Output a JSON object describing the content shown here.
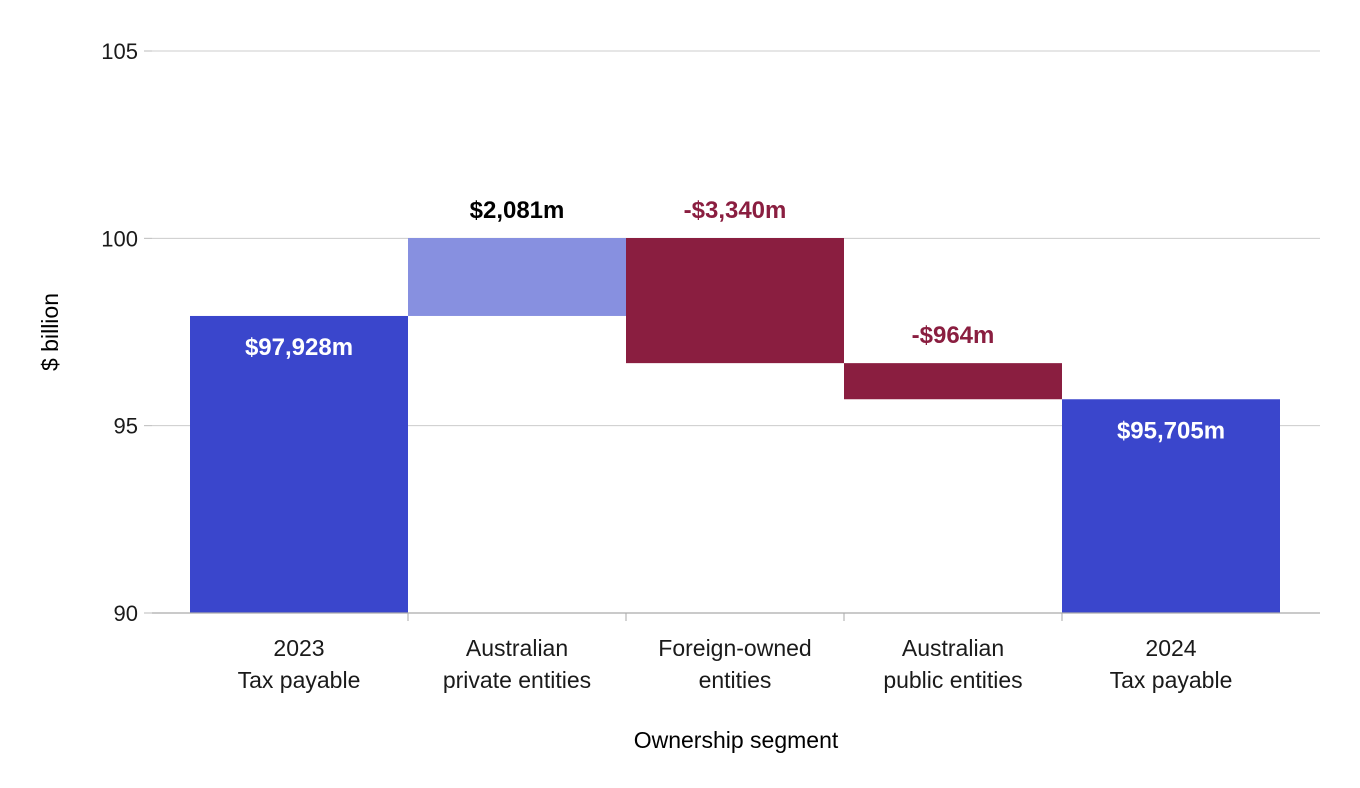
{
  "chart_data": {
    "type": "bar",
    "subtype": "waterfall",
    "title": "",
    "xlabel": "Ownership segment",
    "ylabel": "$ billion",
    "ylim": [
      90,
      105
    ],
    "yticks": [
      90,
      95,
      100,
      105
    ],
    "grid": true,
    "legend": "none",
    "categories": [
      [
        "2023",
        "Tax payable"
      ],
      [
        "Australian",
        "private entities"
      ],
      [
        "Foreign-owned",
        "entities"
      ],
      [
        "Australian",
        "public entities"
      ],
      [
        "2024",
        "Tax payable"
      ]
    ],
    "bars": [
      {
        "kind": "total",
        "start": 90,
        "end": 97.928,
        "value": 97928,
        "label": "$97,928m",
        "color": "#3a46cc",
        "label_color": "#ffffff",
        "label_position": "inside"
      },
      {
        "kind": "increase",
        "start": 97.928,
        "end": 100.009,
        "value": 2081,
        "label": "$2,081m",
        "color": "#8790e0",
        "label_color": "#000000",
        "label_position": "above"
      },
      {
        "kind": "decrease",
        "start": 100.009,
        "end": 96.669,
        "value": -3340,
        "label": "-$3,340m",
        "color": "#8a1e40",
        "label_color": "#8a1e40",
        "label_position": "above"
      },
      {
        "kind": "decrease",
        "start": 96.669,
        "end": 95.705,
        "value": -964,
        "label": "-$964m",
        "color": "#8a1e40",
        "label_color": "#8a1e40",
        "label_position": "above"
      },
      {
        "kind": "total",
        "start": 90,
        "end": 95.705,
        "value": 95705,
        "label": "$95,705m",
        "color": "#3a46cc",
        "label_color": "#ffffff",
        "label_position": "inside"
      }
    ]
  }
}
